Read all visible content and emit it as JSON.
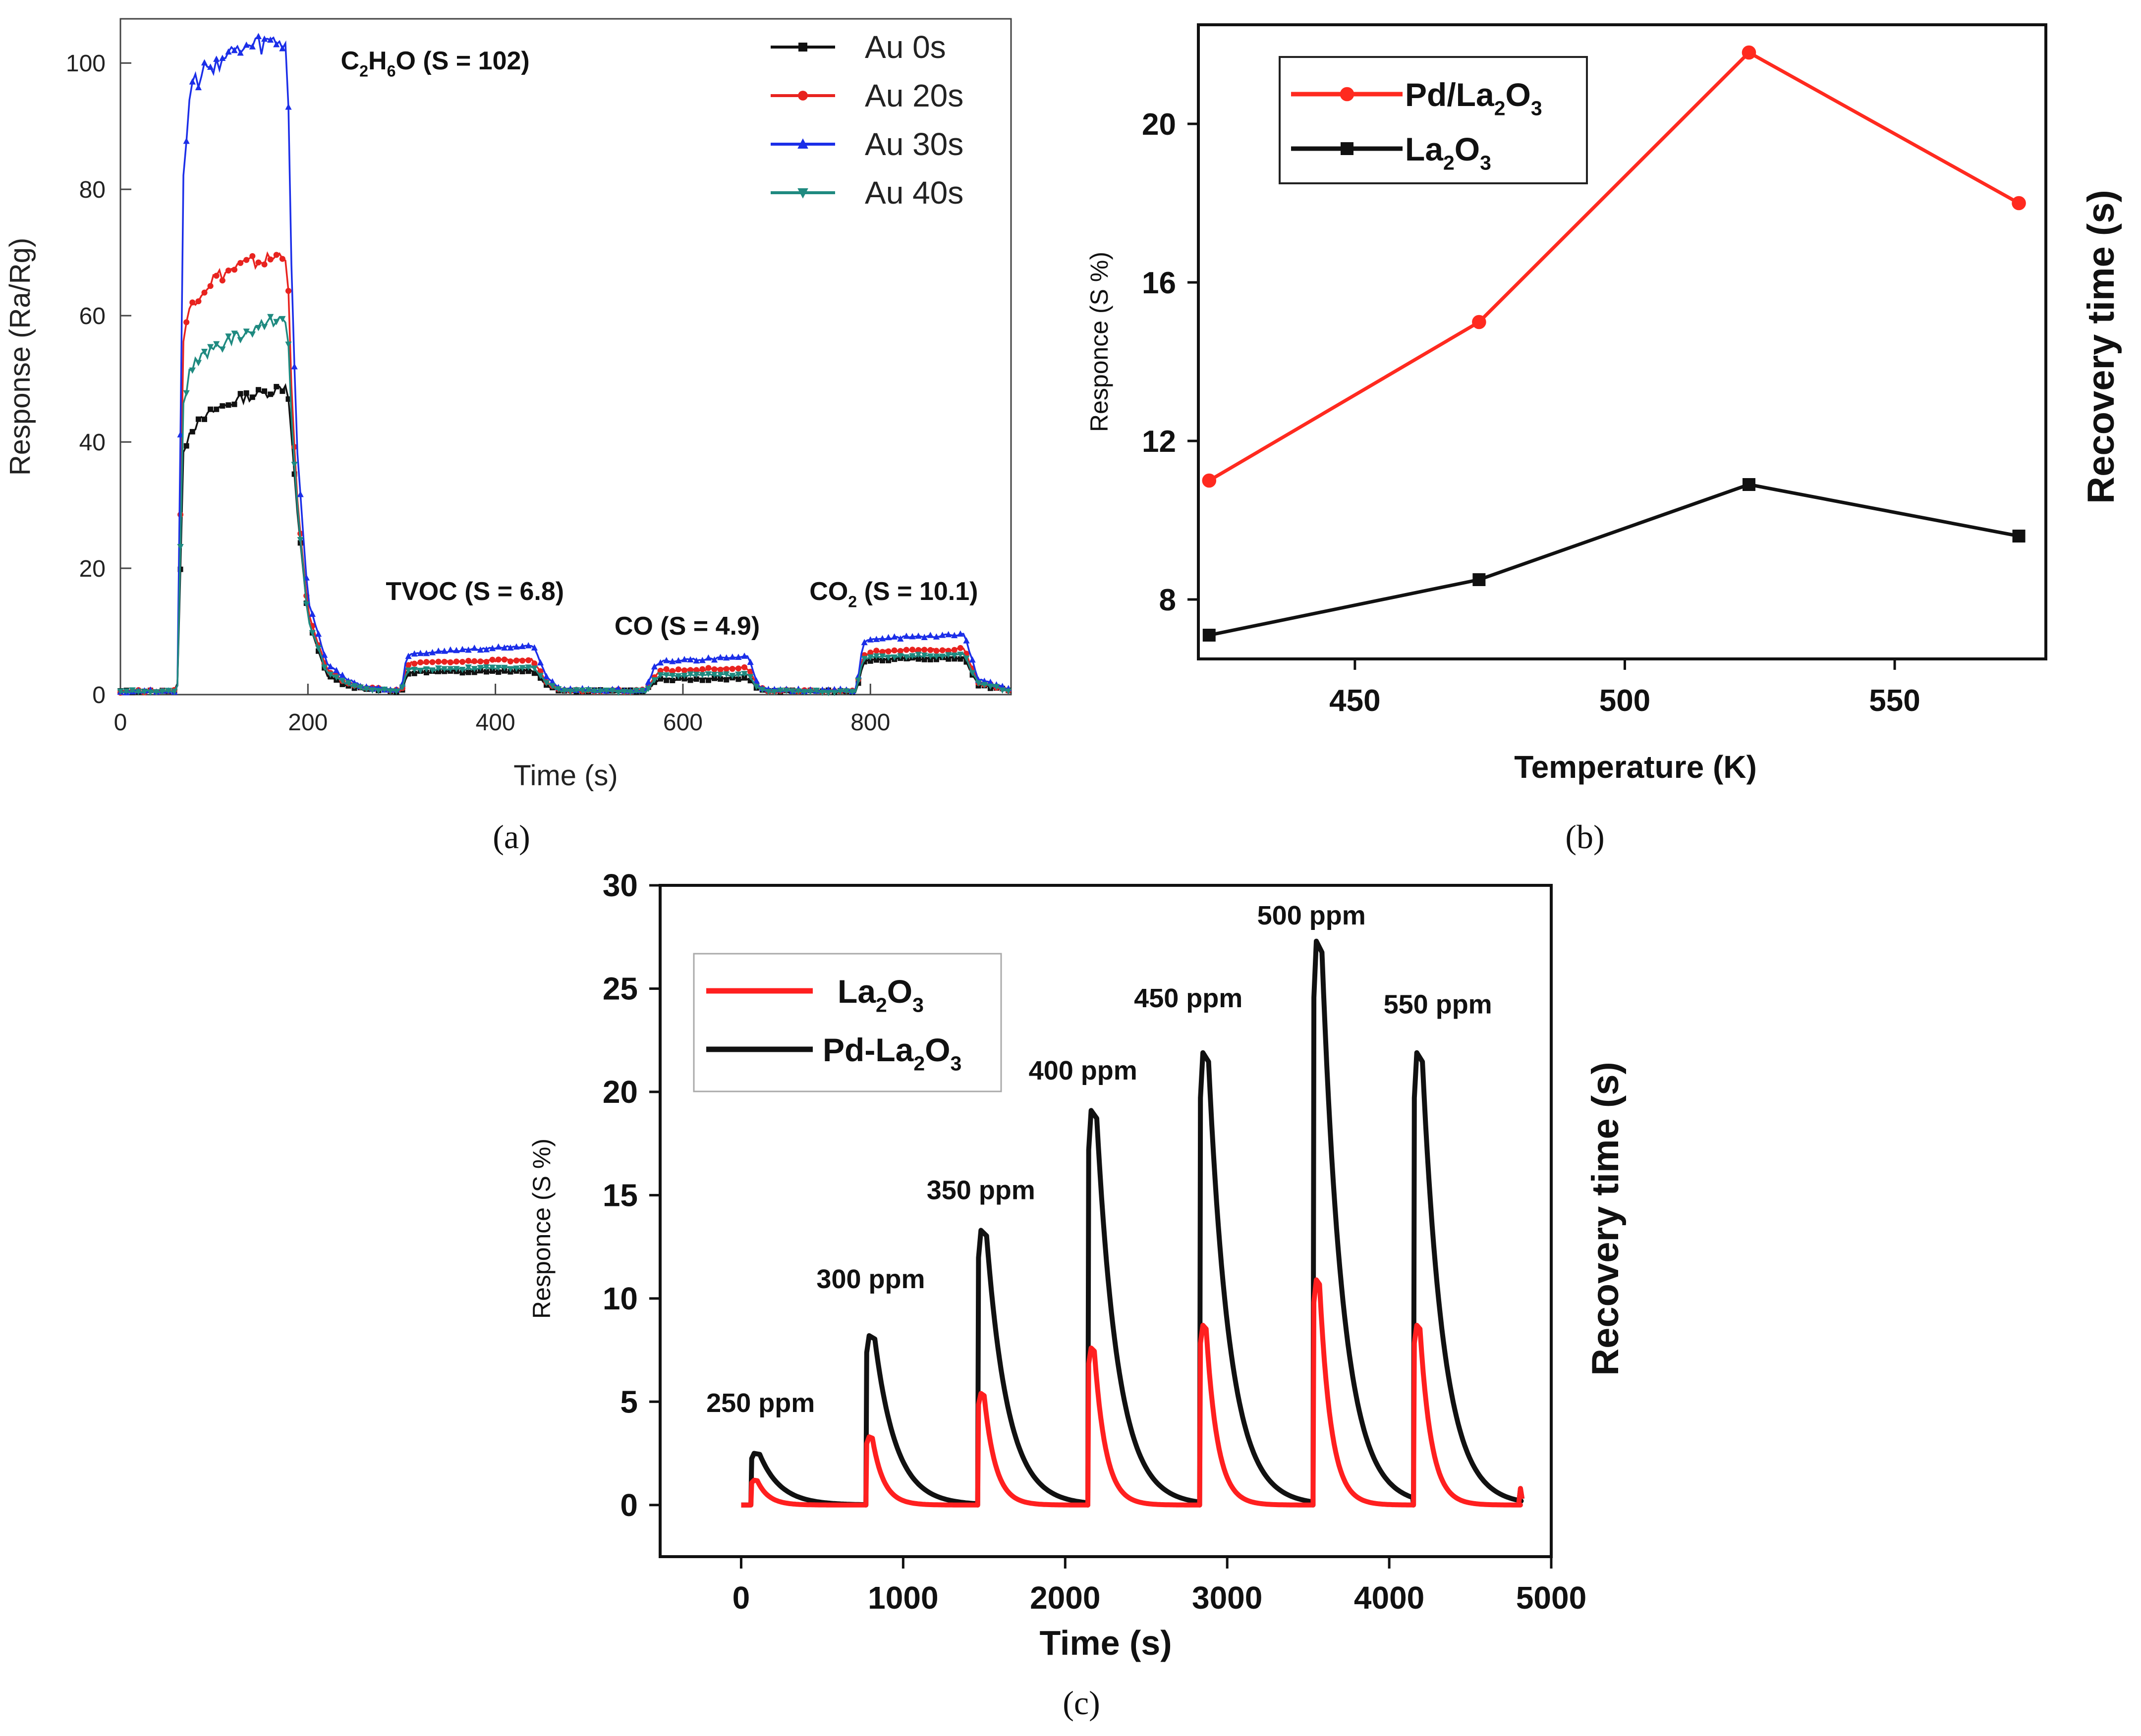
{
  "chart_data": [
    {
      "panel": "a",
      "type": "line",
      "caption_letter": "a",
      "xlabel": "Time (s)",
      "ylabel": "Response (Ra/Rg)",
      "xlim": [
        0,
        950
      ],
      "ylim": [
        0,
        107
      ],
      "xticks": [
        0,
        200,
        400,
        600,
        800
      ],
      "yticks": [
        0,
        20,
        40,
        60,
        80,
        100
      ],
      "legend_position": "top-right",
      "series": [
        {
          "name": "Au 0s",
          "color": "#111111",
          "marker": "square",
          "x": [
            0,
            58,
            62,
            66,
            75,
            100,
            130,
            160,
            178,
            182,
            188,
            200,
            220,
            240,
            260,
            300,
            305,
            310,
            440,
            455,
            470,
            560,
            570,
            575,
            670,
            680,
            690,
            785,
            792,
            800,
            900,
            915,
            950
          ],
          "y": [
            0.5,
            0.6,
            2,
            38,
            42,
            45,
            47,
            48,
            49,
            42,
            30,
            12,
            3,
            1.5,
            0.8,
            0.5,
            3,
            3.5,
            3.8,
            1.5,
            0.6,
            0.5,
            2,
            2.4,
            2.5,
            1.0,
            0.5,
            0.5,
            5,
            5.5,
            5.8,
            1.5,
            0.6
          ]
        },
        {
          "name": "Au 20s",
          "color": "#e8231f",
          "marker": "circle",
          "x": [
            0,
            58,
            62,
            66,
            75,
            100,
            130,
            160,
            178,
            182,
            188,
            200,
            220,
            240,
            260,
            300,
            305,
            310,
            440,
            455,
            470,
            560,
            570,
            575,
            670,
            680,
            690,
            785,
            792,
            800,
            900,
            915,
            950
          ],
          "y": [
            0.5,
            0.6,
            2,
            55,
            62,
            66,
            68,
            69,
            70,
            50,
            32,
            13,
            4,
            2,
            1,
            0.6,
            4.5,
            5,
            5.5,
            2,
            0.7,
            0.6,
            3,
            3.8,
            4.2,
            1.2,
            0.6,
            0.6,
            6,
            6.8,
            7.2,
            2,
            0.7
          ]
        },
        {
          "name": "Au 30s",
          "color": "#1b2ee8",
          "marker": "triangle",
          "x": [
            0,
            58,
            62,
            66,
            75,
            100,
            130,
            160,
            178,
            182,
            188,
            200,
            220,
            240,
            260,
            300,
            305,
            310,
            440,
            455,
            470,
            560,
            570,
            575,
            670,
            680,
            690,
            785,
            792,
            800,
            900,
            915,
            950
          ],
          "y": [
            0.5,
            0.6,
            2,
            80,
            96,
            100,
            102,
            103,
            103,
            70,
            40,
            15,
            5,
            2.5,
            1.2,
            0.7,
            6,
            6.5,
            7.8,
            2.5,
            0.8,
            0.7,
            4.5,
            5.2,
            6,
            1.5,
            0.7,
            0.7,
            8,
            8.8,
            9.5,
            2.5,
            0.8
          ]
        },
        {
          "name": "Au 40s",
          "color": "#1f8a80",
          "marker": "triangle-down",
          "x": [
            0,
            58,
            62,
            66,
            75,
            100,
            130,
            160,
            178,
            182,
            188,
            200,
            220,
            240,
            260,
            300,
            305,
            310,
            440,
            455,
            470,
            560,
            570,
            575,
            670,
            680,
            690,
            785,
            792,
            800,
            900,
            915,
            950
          ],
          "y": [
            0.5,
            0.6,
            2,
            45,
            52,
            55,
            57,
            59,
            60,
            45,
            31,
            12,
            3.5,
            1.8,
            0.9,
            0.6,
            3.5,
            4,
            4.3,
            1.7,
            0.6,
            0.5,
            2.5,
            3,
            3.2,
            1.1,
            0.5,
            0.5,
            5.5,
            6,
            6.3,
            1.7,
            0.6
          ]
        }
      ],
      "annotations": [
        {
          "id": "c2h6o",
          "parts": [
            {
              "t": "C"
            },
            {
              "t": "2",
              "sub": true
            },
            {
              "t": "H"
            },
            {
              "t": "6",
              "sub": true
            },
            {
              "t": "O (S = 102)"
            }
          ],
          "x": 235,
          "y": 99
        },
        {
          "id": "tvoc",
          "parts": [
            {
              "t": "TVOC (S = 6.8)"
            }
          ],
          "x": 283,
          "y": 15
        },
        {
          "id": "co",
          "parts": [
            {
              "t": "CO (S = 4.9)"
            }
          ],
          "x": 527,
          "y": 9.5
        },
        {
          "id": "co2",
          "parts": [
            {
              "t": "CO"
            },
            {
              "t": "2",
              "sub": true
            },
            {
              "t": " (S = 10.1)"
            }
          ],
          "x": 735,
          "y": 15
        }
      ]
    },
    {
      "panel": "b",
      "type": "line",
      "caption_letter": "b",
      "xlabel": "Temperature (K)",
      "ylabel": "Responce (S %)",
      "ylabel_right": "Recovery time (s)",
      "xlim": [
        421,
        578
      ],
      "ylim": [
        6.5,
        22.5
      ],
      "xticks": [
        450,
        500,
        550
      ],
      "yticks": [
        8,
        12,
        16,
        20
      ],
      "legend_position": "top-left",
      "series": [
        {
          "name_parts": [
            {
              "t": "Pd/La"
            },
            {
              "t": "2",
              "sub": true
            },
            {
              "t": "O"
            },
            {
              "t": "3",
              "sub": true
            }
          ],
          "color": "#ff2a1f",
          "marker": "circle",
          "x": [
            423,
            473,
            523,
            573
          ],
          "y": [
            11,
            15,
            21.8,
            18
          ]
        },
        {
          "name_parts": [
            {
              "t": "La"
            },
            {
              "t": "2",
              "sub": true
            },
            {
              "t": "O"
            },
            {
              "t": "3",
              "sub": true
            }
          ],
          "color": "#111111",
          "marker": "square",
          "x": [
            423,
            473,
            523,
            573
          ],
          "y": [
            7.1,
            8.5,
            10.9,
            9.6
          ]
        }
      ]
    },
    {
      "panel": "c",
      "type": "line",
      "caption_letter": "c",
      "xlabel": "Time (s)",
      "ylabel": "Responce (S %)",
      "ylabel_right": "Recovery time (s)",
      "xlim": [
        -500,
        5000
      ],
      "ylim": [
        -2.5,
        30
      ],
      "xticks": [
        0,
        1000,
        2000,
        3000,
        4000,
        5000
      ],
      "yticks": [
        0,
        5,
        10,
        15,
        20,
        25,
        30
      ],
      "legend_position": "top-left",
      "pulse_starts": [
        60,
        770,
        1460,
        2140,
        2830,
        3530,
        4150
      ],
      "series": [
        {
          "name_parts": [
            {
              "t": "La"
            },
            {
              "t": "2",
              "sub": true
            },
            {
              "t": "O"
            },
            {
              "t": "3",
              "sub": true
            }
          ],
          "color": "#ff1f1f",
          "peaks": [
            1.2,
            3.3,
            5.4,
            7.6,
            8.7,
            10.9,
            8.7
          ]
        },
        {
          "name_parts": [
            {
              "t": "Pd-La"
            },
            {
              "t": "2",
              "sub": true
            },
            {
              "t": "O"
            },
            {
              "t": "3",
              "sub": true
            }
          ],
          "color": "#111111",
          "peaks": [
            2.5,
            8.2,
            13.3,
            19.1,
            21.9,
            27.3,
            21.9
          ]
        }
      ],
      "peak_labels": [
        {
          "text": "250 ppm",
          "x": 120,
          "y": 4.5
        },
        {
          "text": "300 ppm",
          "x": 800,
          "y": 10.5
        },
        {
          "text": "350 ppm",
          "x": 1480,
          "y": 14.8
        },
        {
          "text": "400 ppm",
          "x": 2110,
          "y": 20.6
        },
        {
          "text": "450 ppm",
          "x": 2760,
          "y": 24.1
        },
        {
          "text": "500 ppm",
          "x": 3520,
          "y": 28.1
        },
        {
          "text": "550 ppm",
          "x": 4300,
          "y": 23.8
        }
      ]
    }
  ]
}
